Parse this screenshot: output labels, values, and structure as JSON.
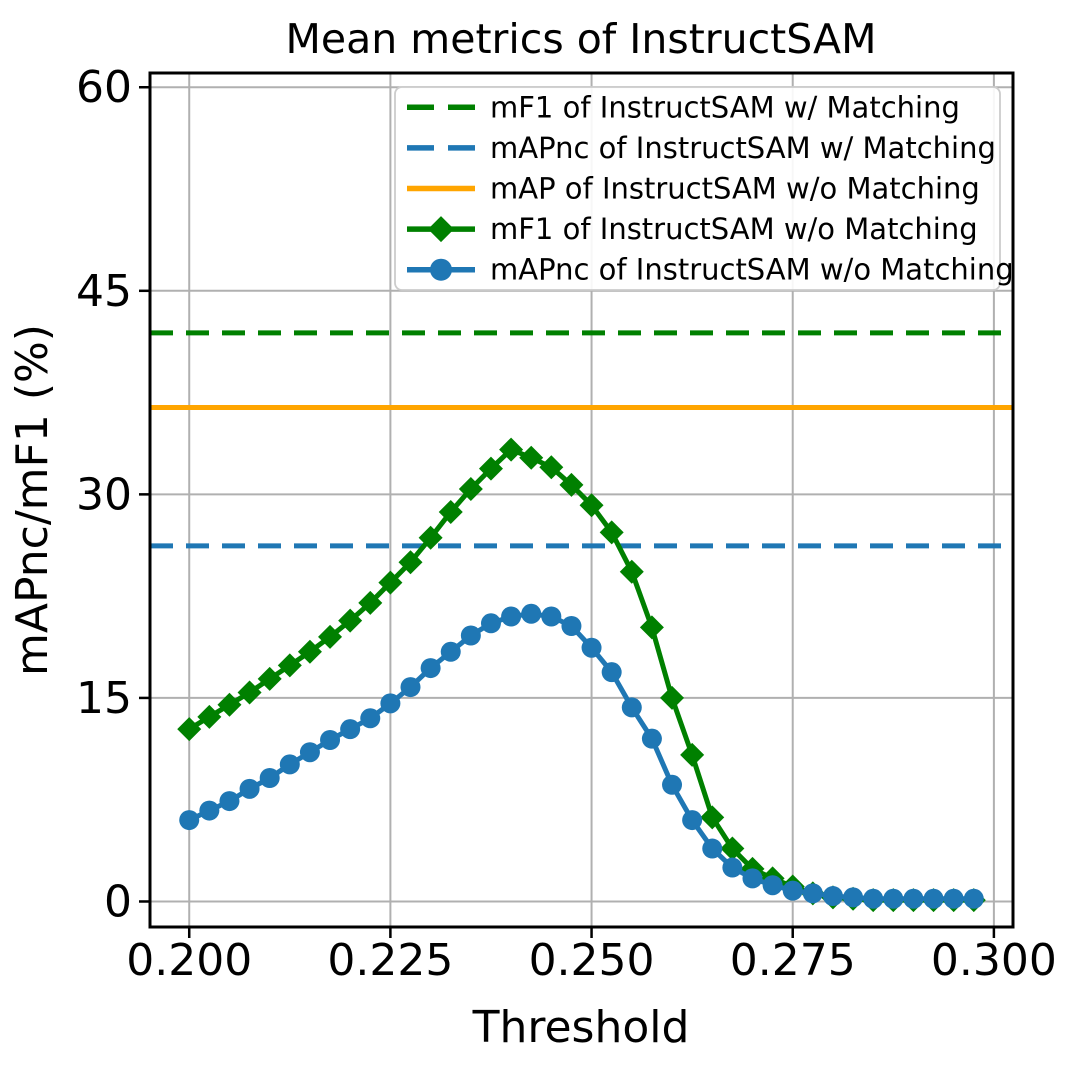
{
  "figure": {
    "background": "#ffffff"
  },
  "chart_data": {
    "type": "line",
    "title": "Mean metrics of InstructSAM",
    "xlabel": "Threshold",
    "ylabel": "mAPnc/mF1 (%)",
    "grid": true,
    "legend_position": "upper center",
    "xlim": [
      0.195125,
      0.302375
    ],
    "ylim": [
      -1.88,
      61.05
    ],
    "x_ticks": {
      "values": [
        0.2,
        0.225,
        0.25,
        0.275,
        0.3
      ],
      "labels": [
        "0.200",
        "0.225",
        "0.250",
        "0.275",
        "0.300"
      ]
    },
    "y_ticks": {
      "values": [
        0,
        15,
        30,
        45,
        60
      ],
      "labels": [
        "0",
        "15",
        "30",
        "45",
        "60"
      ]
    },
    "colors": {
      "green": "#008000",
      "blue": "#1f77b4",
      "orange": "#ffa500",
      "grid": "#b0b0b0",
      "spine": "#000000",
      "legend_border": "#cccccc"
    },
    "x": [
      0.2,
      0.2025,
      0.205,
      0.2075,
      0.21,
      0.2125,
      0.215,
      0.2175,
      0.22,
      0.2225,
      0.225,
      0.2275,
      0.23,
      0.2325,
      0.235,
      0.2375,
      0.24,
      0.2425,
      0.245,
      0.2475,
      0.25,
      0.2525,
      0.255,
      0.2575,
      0.26,
      0.2625,
      0.265,
      0.2675,
      0.27,
      0.2725,
      0.275,
      0.2775,
      0.28,
      0.2825,
      0.285,
      0.2875,
      0.29,
      0.2925,
      0.295,
      0.2975
    ],
    "series": [
      {
        "name": "mF1 of InstructSAM w/ Matching",
        "kind": "hline",
        "value": 41.9,
        "color": "#008000",
        "style": "dashed",
        "marker": "none"
      },
      {
        "name": "mAPnc of InstructSAM w/ Matching",
        "kind": "hline",
        "value": 26.2,
        "color": "#1f77b4",
        "style": "dashed",
        "marker": "none"
      },
      {
        "name": "mAP of InstructSAM w/o Matching",
        "kind": "hline",
        "value": 36.4,
        "color": "#ffa500",
        "style": "solid",
        "marker": "none"
      },
      {
        "name": "mF1 of InstructSAM w/o Matching",
        "kind": "line",
        "style": "solid",
        "color": "#008000",
        "marker": "diamond",
        "values": [
          12.7,
          13.6,
          14.5,
          15.4,
          16.4,
          17.4,
          18.4,
          19.5,
          20.7,
          22.0,
          23.5,
          25.0,
          26.8,
          28.7,
          30.4,
          31.9,
          33.3,
          32.7,
          32.0,
          30.7,
          29.2,
          27.2,
          24.3,
          20.2,
          15.0,
          10.8,
          6.2,
          3.9,
          2.4,
          1.7,
          1.1,
          0.6,
          0.3,
          0.2,
          0.1,
          0.1,
          0.1,
          0.1,
          0.1,
          0.1
        ]
      },
      {
        "name": "mAPnc of InstructSAM w/o Matching",
        "kind": "line",
        "style": "solid",
        "color": "#1f77b4",
        "marker": "circle",
        "values": [
          6.0,
          6.7,
          7.4,
          8.3,
          9.1,
          10.1,
          11.0,
          11.9,
          12.7,
          13.5,
          14.6,
          15.8,
          17.2,
          18.4,
          19.6,
          20.5,
          21.0,
          21.2,
          21.0,
          20.3,
          18.7,
          16.9,
          14.3,
          12.0,
          8.6,
          6.0,
          3.9,
          2.5,
          1.7,
          1.2,
          0.8,
          0.6,
          0.4,
          0.3,
          0.2,
          0.2,
          0.2,
          0.2,
          0.2,
          0.2
        ]
      }
    ]
  }
}
